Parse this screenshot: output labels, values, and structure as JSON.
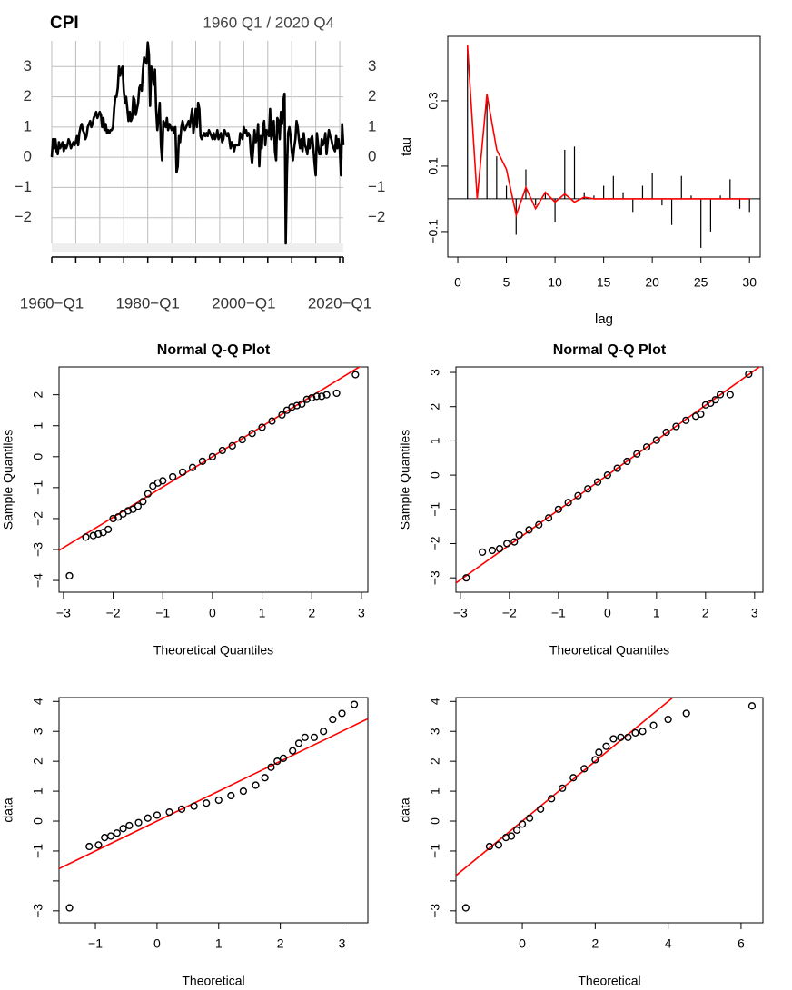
{
  "chart_data": [
    {
      "type": "line",
      "title": "CPI",
      "subtitle": "1960 Q1 / 2020 Q4",
      "color": "#000000",
      "grid": true,
      "xlim": [
        "1960-Q1",
        "2020-Q4"
      ],
      "ylim": [
        -2.85,
        3.85
      ],
      "yticks": [
        {
          "value": -2,
          "label": "−2"
        },
        {
          "value": -1,
          "label": "−1"
        },
        0,
        1,
        2,
        3
      ],
      "xticks": [
        {
          "value": "1960-Q1",
          "label": "1960−Q1"
        },
        {
          "value": "1965-Q1",
          "label": null
        },
        {
          "value": "1970-Q1",
          "label": null
        },
        {
          "value": "1975-Q1",
          "label": null
        },
        {
          "value": "1980-Q1",
          "label": "1980−Q1"
        },
        {
          "value": "1985-Q1",
          "label": null
        },
        {
          "value": "1990-Q1",
          "label": null
        },
        {
          "value": "1995-Q1",
          "label": null
        },
        {
          "value": "2000-Q1",
          "label": "2000−Q1"
        },
        {
          "value": "2005-Q1",
          "label": null
        },
        {
          "value": "2010-Q1",
          "label": null
        },
        {
          "value": "2015-Q1",
          "label": null
        },
        {
          "value": "2020-Q1",
          "label": "2020−Q1"
        }
      ],
      "x": [
        "1960-Q1",
        "1960-Q2",
        "1960-Q3",
        "1960-Q4",
        "1961-Q1",
        "1961-Q2",
        "1961-Q3",
        "1961-Q4",
        "1962-Q1",
        "1962-Q2",
        "1962-Q3",
        "1962-Q4",
        "1963-Q1",
        "1963-Q2",
        "1963-Q3",
        "1963-Q4",
        "1964-Q1",
        "1964-Q2",
        "1964-Q3",
        "1964-Q4",
        "1965-Q1",
        "1965-Q2",
        "1965-Q3",
        "1965-Q4",
        "1966-Q1",
        "1966-Q2",
        "1966-Q3",
        "1966-Q4",
        "1967-Q1",
        "1967-Q2",
        "1967-Q3",
        "1967-Q4",
        "1968-Q1",
        "1968-Q2",
        "1968-Q3",
        "1968-Q4",
        "1969-Q1",
        "1969-Q2",
        "1969-Q3",
        "1969-Q4",
        "1970-Q1",
        "1970-Q2",
        "1970-Q3",
        "1970-Q4",
        "1971-Q1",
        "1971-Q2",
        "1971-Q3",
        "1971-Q4",
        "1972-Q1",
        "1972-Q2",
        "1972-Q3",
        "1972-Q4",
        "1973-Q1",
        "1973-Q2",
        "1973-Q3",
        "1973-Q4",
        "1974-Q1",
        "1974-Q2",
        "1974-Q3",
        "1974-Q4",
        "1975-Q1",
        "1975-Q2",
        "1975-Q3",
        "1975-Q4",
        "1976-Q1",
        "1976-Q2",
        "1976-Q3",
        "1976-Q4",
        "1977-Q1",
        "1977-Q2",
        "1977-Q3",
        "1977-Q4",
        "1978-Q1",
        "1978-Q2",
        "1978-Q3",
        "1978-Q4",
        "1979-Q1",
        "1979-Q2",
        "1979-Q3",
        "1979-Q4",
        "1980-Q1",
        "1980-Q2",
        "1980-Q3",
        "1980-Q4",
        "1981-Q1",
        "1981-Q2",
        "1981-Q3",
        "1981-Q4",
        "1982-Q1",
        "1982-Q2",
        "1982-Q3",
        "1982-Q4",
        "1983-Q1",
        "1983-Q2",
        "1983-Q3",
        "1983-Q4",
        "1984-Q1",
        "1984-Q2",
        "1984-Q3",
        "1984-Q4",
        "1985-Q1",
        "1985-Q2",
        "1985-Q3",
        "1985-Q4",
        "1986-Q1",
        "1986-Q2",
        "1986-Q3",
        "1986-Q4",
        "1987-Q1",
        "1987-Q2",
        "1987-Q3",
        "1987-Q4",
        "1988-Q1",
        "1988-Q2",
        "1988-Q3",
        "1988-Q4",
        "1989-Q1",
        "1989-Q2",
        "1989-Q3",
        "1989-Q4",
        "1990-Q1",
        "1990-Q2",
        "1990-Q3",
        "1990-Q4",
        "1991-Q1",
        "1991-Q2",
        "1991-Q3",
        "1991-Q4",
        "1992-Q1",
        "1992-Q2",
        "1992-Q3",
        "1992-Q4",
        "1993-Q1",
        "1993-Q2",
        "1993-Q3",
        "1993-Q4",
        "1994-Q1",
        "1994-Q2",
        "1994-Q3",
        "1994-Q4",
        "1995-Q1",
        "1995-Q2",
        "1995-Q3",
        "1995-Q4",
        "1996-Q1",
        "1996-Q2",
        "1996-Q3",
        "1996-Q4",
        "1997-Q1",
        "1997-Q2",
        "1997-Q3",
        "1997-Q4",
        "1998-Q1",
        "1998-Q2",
        "1998-Q3",
        "1998-Q4",
        "1999-Q1",
        "1999-Q2",
        "1999-Q3",
        "1999-Q4",
        "2000-Q1",
        "2000-Q2",
        "2000-Q3",
        "2000-Q4",
        "2001-Q1",
        "2001-Q2",
        "2001-Q3",
        "2001-Q4",
        "2002-Q1",
        "2002-Q2",
        "2002-Q3",
        "2002-Q4",
        "2003-Q1",
        "2003-Q2",
        "2003-Q3",
        "2003-Q4",
        "2004-Q1",
        "2004-Q2",
        "2004-Q3",
        "2004-Q4",
        "2005-Q1",
        "2005-Q2",
        "2005-Q3",
        "2005-Q4",
        "2006-Q1",
        "2006-Q2",
        "2006-Q3",
        "2006-Q4",
        "2007-Q1",
        "2007-Q2",
        "2007-Q3",
        "2007-Q4",
        "2008-Q1",
        "2008-Q2",
        "2008-Q3",
        "2008-Q4",
        "2009-Q1",
        "2009-Q2",
        "2009-Q3",
        "2009-Q4",
        "2010-Q1",
        "2010-Q2",
        "2010-Q3",
        "2010-Q4",
        "2011-Q1",
        "2011-Q2",
        "2011-Q3",
        "2011-Q4",
        "2012-Q1",
        "2012-Q2",
        "2012-Q3",
        "2012-Q4",
        "2013-Q1",
        "2013-Q2",
        "2013-Q3",
        "2013-Q4",
        "2014-Q1",
        "2014-Q2",
        "2014-Q3",
        "2014-Q4",
        "2015-Q1",
        "2015-Q2",
        "2015-Q3",
        "2015-Q4",
        "2016-Q1",
        "2016-Q2",
        "2016-Q3",
        "2016-Q4",
        "2017-Q1",
        "2017-Q2",
        "2017-Q3",
        "2017-Q4",
        "2018-Q1",
        "2018-Q2",
        "2018-Q3",
        "2018-Q4",
        "2019-Q1",
        "2019-Q2",
        "2019-Q3",
        "2019-Q4",
        "2020-Q1",
        "2020-Q2",
        "2020-Q3",
        "2020-Q4"
      ],
      "values": [
        0,
        0.6,
        0.3,
        0.6,
        0.2,
        0.1,
        0.5,
        0.3,
        0.4,
        0.5,
        0.2,
        0.4,
        0.3,
        0.4,
        0.6,
        0.5,
        0.3,
        0.4,
        0.5,
        0.4,
        0.5,
        0.7,
        0.4,
        0.8,
        1.0,
        1.1,
        0.9,
        0.8,
        0.6,
        0.7,
        1.0,
        1.1,
        1.2,
        1.0,
        1.1,
        1.3,
        1.4,
        1.5,
        1.3,
        1.4,
        1.5,
        1.4,
        1.0,
        1.3,
        0.9,
        1.1,
        0.8,
        0.9,
        0.8,
        0.9,
        0.9,
        1.0,
        1.6,
        2.0,
        2.0,
        2.3,
        3.0,
        2.7,
        2.9,
        3.0,
        2.2,
        1.8,
        2.0,
        1.6,
        1.2,
        1.5,
        1.2,
        1.3,
        2.0,
        1.9,
        1.4,
        1.6,
        1.8,
        2.3,
        2.4,
        2.2,
        2.9,
        3.3,
        3.2,
        3.1,
        3.8,
        3.4,
        1.7,
        3.0,
        2.8,
        2.4,
        2.9,
        1.6,
        0.9,
        1.3,
        1.8,
        0.4,
        -0.1,
        1.2,
        1.1,
        1.0,
        1.3,
        0.9,
        1.1,
        1.0,
        0.9,
        1.0,
        0.8,
        1.0,
        -0.5,
        -0.3,
        0.7,
        0.5,
        1.0,
        1.2,
        1.0,
        0.9,
        1.0,
        1.1,
        1.2,
        1.0,
        1.3,
        1.6,
        0.8,
        1.1,
        1.6,
        1.0,
        1.8,
        1.6,
        0.7,
        0.6,
        0.7,
        0.8,
        0.7,
        0.8,
        0.7,
        0.9,
        0.8,
        0.7,
        0.6,
        0.8,
        0.6,
        0.7,
        0.9,
        0.6,
        0.7,
        0.8,
        0.5,
        0.6,
        0.9,
        0.8,
        0.7,
        0.8,
        0.6,
        0.3,
        0.5,
        0.4,
        0.2,
        0.4,
        0.4,
        0.4,
        0.4,
        0.8,
        0.7,
        0.6,
        1.0,
        0.8,
        0.9,
        0.7,
        0.8,
        0.7,
        0.1,
        -0.2,
        0.3,
        0.9,
        0.5,
        0.6,
        1.1,
        -0.3,
        0.7,
        0.3,
        1.0,
        1.2,
        0.4,
        0.9,
        0.8,
        0.7,
        1.6,
        0.6,
        0.8,
        1.2,
        0.2,
        -0.1,
        1.3,
        1.2,
        0.6,
        1.5,
        1.1,
        1.9,
        2.1,
        -2.85,
        -0.5,
        0.8,
        1.0,
        0.7,
        0.2,
        -0.1,
        0.3,
        0.6,
        1.2,
        1.0,
        0.6,
        0.3,
        0.6,
        0.2,
        0.8,
        0.4,
        0.3,
        0.1,
        0.6,
        0.3,
        0.6,
        0.7,
        0.3,
        -0.2,
        -0.6,
        0.8,
        0.4,
        0.1,
        0.1,
        0.6,
        0.4,
        0.5,
        0.8,
        0.1,
        0.5,
        0.9,
        0.7,
        0.6,
        0.4,
        0.3,
        0.2,
        0.7,
        0.3,
        0.6,
        0.3,
        -0.6,
        1.1,
        0.4
      ]
    },
    {
      "type": "stem",
      "xlabel": "lag",
      "ylabel": "tau",
      "xlim": [
        -1.03,
        31.1
      ],
      "ylim": [
        -0.178,
        0.497
      ],
      "xticks": [
        0,
        5,
        10,
        15,
        20,
        25,
        30
      ],
      "yticks": [
        {
          "value": -0.1,
          "label": "−0.1"
        },
        0.1,
        0.3
      ],
      "x": [
        1,
        2,
        3,
        4,
        5,
        6,
        7,
        8,
        9,
        10,
        11,
        12,
        13,
        14,
        15,
        16,
        17,
        18,
        19,
        20,
        21,
        22,
        23,
        24,
        25,
        26,
        27,
        28,
        29,
        30
      ],
      "series": [
        {
          "style": "stem",
          "color": "#000000",
          "values": [
            0.47,
            0.0,
            0.3,
            0.13,
            0.04,
            -0.11,
            0.09,
            -0.02,
            0.02,
            -0.07,
            0.15,
            0.16,
            0.02,
            0.01,
            0.04,
            0.07,
            0.02,
            -0.04,
            0.04,
            0.08,
            -0.02,
            -0.08,
            0.07,
            0.01,
            -0.15,
            -0.1,
            0.01,
            0.06,
            -0.03,
            -0.04
          ]
        },
        {
          "style": "line",
          "color": "#ff0000",
          "values": [
            0.47,
            0.0,
            0.32,
            0.15,
            0.09,
            -0.05,
            0.035,
            -0.03,
            0.02,
            -0.01,
            0.015,
            -0.01,
            0.005,
            0,
            0,
            0,
            0,
            0,
            0,
            0,
            0,
            0,
            0,
            0,
            0,
            0,
            0,
            0,
            0,
            0
          ]
        }
      ]
    },
    {
      "type": "scatter",
      "title": "Normal Q-Q Plot",
      "xlabel": "Theoretical Quantiles",
      "ylabel": "Sample Quantiles",
      "color": "#000000",
      "xlim": [
        -3.09,
        3.13
      ],
      "ylim": [
        -4.38,
        2.9
      ],
      "xticks": [
        {
          "value": -3,
          "label": "−3"
        },
        {
          "value": -2,
          "label": "−2"
        },
        {
          "value": -1,
          "label": "−1"
        },
        0,
        1,
        2,
        3
      ],
      "yticks": [
        {
          "value": -4,
          "label": "−4"
        },
        {
          "value": -3,
          "label": "−3"
        },
        {
          "value": -2,
          "label": "−2"
        },
        {
          "value": -1,
          "label": "−1"
        },
        0,
        1,
        2
      ],
      "line": {
        "intercept": 0,
        "slope": 0.98,
        "color": "#ff0000"
      },
      "x": [
        -2.88,
        -2.55,
        -2.4,
        -2.3,
        -2.2,
        -2.1,
        -2.0,
        -1.9,
        -1.8,
        -1.7,
        -1.6,
        -1.5,
        -1.4,
        -1.3,
        -1.2,
        -1.1,
        -1.0,
        -0.8,
        -0.6,
        -0.4,
        -0.2,
        0,
        0.2,
        0.4,
        0.6,
        0.8,
        1.0,
        1.2,
        1.4,
        1.5,
        1.6,
        1.7,
        1.8,
        1.9,
        2.0,
        2.1,
        2.2,
        2.3,
        2.5,
        2.88
      ],
      "values": [
        -3.85,
        -2.6,
        -2.55,
        -2.5,
        -2.45,
        -2.35,
        -2.0,
        -1.95,
        -1.85,
        -1.75,
        -1.7,
        -1.6,
        -1.45,
        -1.2,
        -0.95,
        -0.85,
        -0.78,
        -0.65,
        -0.5,
        -0.35,
        -0.15,
        0.0,
        0.2,
        0.35,
        0.55,
        0.75,
        0.95,
        1.15,
        1.35,
        1.5,
        1.6,
        1.65,
        1.7,
        1.85,
        1.9,
        1.95,
        1.95,
        2.0,
        2.05,
        2.65
      ]
    },
    {
      "type": "scatter",
      "title": "Normal Q-Q Plot",
      "xlabel": "Theoretical Quantiles",
      "ylabel": "Sample Quantiles",
      "color": "#000000",
      "xlim": [
        -3.09,
        3.17
      ],
      "ylim": [
        -3.42,
        3.16
      ],
      "xticks": [
        {
          "value": -3,
          "label": "−3"
        },
        {
          "value": -2,
          "label": "−2"
        },
        {
          "value": -1,
          "label": "−1"
        },
        0,
        1,
        2,
        3
      ],
      "yticks": [
        {
          "value": -3,
          "label": "−3"
        },
        {
          "value": -2,
          "label": "−2"
        },
        {
          "value": -1,
          "label": "−1"
        },
        0,
        1,
        2,
        3
      ],
      "line": {
        "intercept": 0,
        "slope": 1.02,
        "color": "#ff0000"
      },
      "x": [
        -2.88,
        -2.55,
        -2.35,
        -2.2,
        -2.05,
        -1.9,
        -1.8,
        -1.6,
        -1.4,
        -1.2,
        -1.0,
        -0.8,
        -0.6,
        -0.4,
        -0.2,
        0,
        0.2,
        0.4,
        0.6,
        0.8,
        1.0,
        1.2,
        1.4,
        1.6,
        1.8,
        1.9,
        2.0,
        2.1,
        2.2,
        2.3,
        2.5,
        2.88
      ],
      "values": [
        -3.0,
        -2.25,
        -2.2,
        -2.15,
        -2.0,
        -1.95,
        -1.75,
        -1.6,
        -1.45,
        -1.25,
        -1.0,
        -0.8,
        -0.6,
        -0.4,
        -0.2,
        0,
        0.2,
        0.4,
        0.62,
        0.82,
        1.02,
        1.25,
        1.42,
        1.6,
        1.72,
        1.78,
        2.05,
        2.1,
        2.2,
        2.35,
        2.35,
        2.95
      ]
    },
    {
      "type": "scatter",
      "xlabel": "Theoretical",
      "ylabel": "data",
      "color": "#000000",
      "xlim": [
        -1.59,
        3.42
      ],
      "ylim": [
        -3.4,
        4.13
      ],
      "xticks": [
        {
          "value": -1,
          "label": "−1"
        },
        0,
        1,
        2,
        3
      ],
      "yticks": [
        {
          "value": -3,
          "label": "−3"
        },
        {
          "value": -2,
          "label": null
        },
        {
          "value": -1,
          "label": "−1"
        },
        0,
        1,
        2,
        3,
        4
      ],
      "line": {
        "intercept": 0,
        "slope": 1,
        "color": "#ff0000"
      },
      "x": [
        -1.42,
        -1.1,
        -0.95,
        -0.85,
        -0.75,
        -0.65,
        -0.55,
        -0.45,
        -0.3,
        -0.15,
        0,
        0.2,
        0.4,
        0.6,
        0.8,
        1.0,
        1.2,
        1.4,
        1.6,
        1.75,
        1.85,
        1.95,
        2.05,
        2.2,
        2.3,
        2.4,
        2.55,
        2.7,
        2.85,
        3.0,
        3.2
      ],
      "values": [
        -2.9,
        -0.85,
        -0.8,
        -0.55,
        -0.5,
        -0.4,
        -0.25,
        -0.15,
        -0.05,
        0.1,
        0.2,
        0.3,
        0.4,
        0.5,
        0.6,
        0.7,
        0.85,
        1.0,
        1.2,
        1.45,
        1.8,
        2.0,
        2.1,
        2.35,
        2.6,
        2.8,
        2.8,
        3.0,
        3.4,
        3.6,
        3.9
      ]
    },
    {
      "type": "scatter",
      "xlabel": "Theoretical",
      "ylabel": "data",
      "color": "#000000",
      "xlim": [
        -1.82,
        6.6
      ],
      "ylim": [
        -3.4,
        4.13
      ],
      "xticks": [
        0,
        2,
        4,
        6
      ],
      "yticks": [
        {
          "value": -3,
          "label": "−3"
        },
        {
          "value": -2,
          "label": null
        },
        {
          "value": -1,
          "label": "−1"
        },
        0,
        1,
        2,
        3,
        4
      ],
      "line": {
        "intercept": 0,
        "slope": 1,
        "color": "#ff0000"
      },
      "x": [
        -1.55,
        -0.9,
        -0.65,
        -0.45,
        -0.3,
        -0.15,
        0,
        0.2,
        0.5,
        0.8,
        1.1,
        1.4,
        1.7,
        2.0,
        2.1,
        2.3,
        2.5,
        2.7,
        2.9,
        3.1,
        3.3,
        3.6,
        4.0,
        4.5,
        6.3
      ],
      "values": [
        -2.9,
        -0.85,
        -0.8,
        -0.55,
        -0.5,
        -0.3,
        -0.1,
        0.1,
        0.4,
        0.75,
        1.1,
        1.45,
        1.75,
        2.05,
        2.3,
        2.5,
        2.75,
        2.8,
        2.8,
        2.95,
        3.0,
        3.2,
        3.4,
        3.6,
        3.85
      ]
    }
  ]
}
